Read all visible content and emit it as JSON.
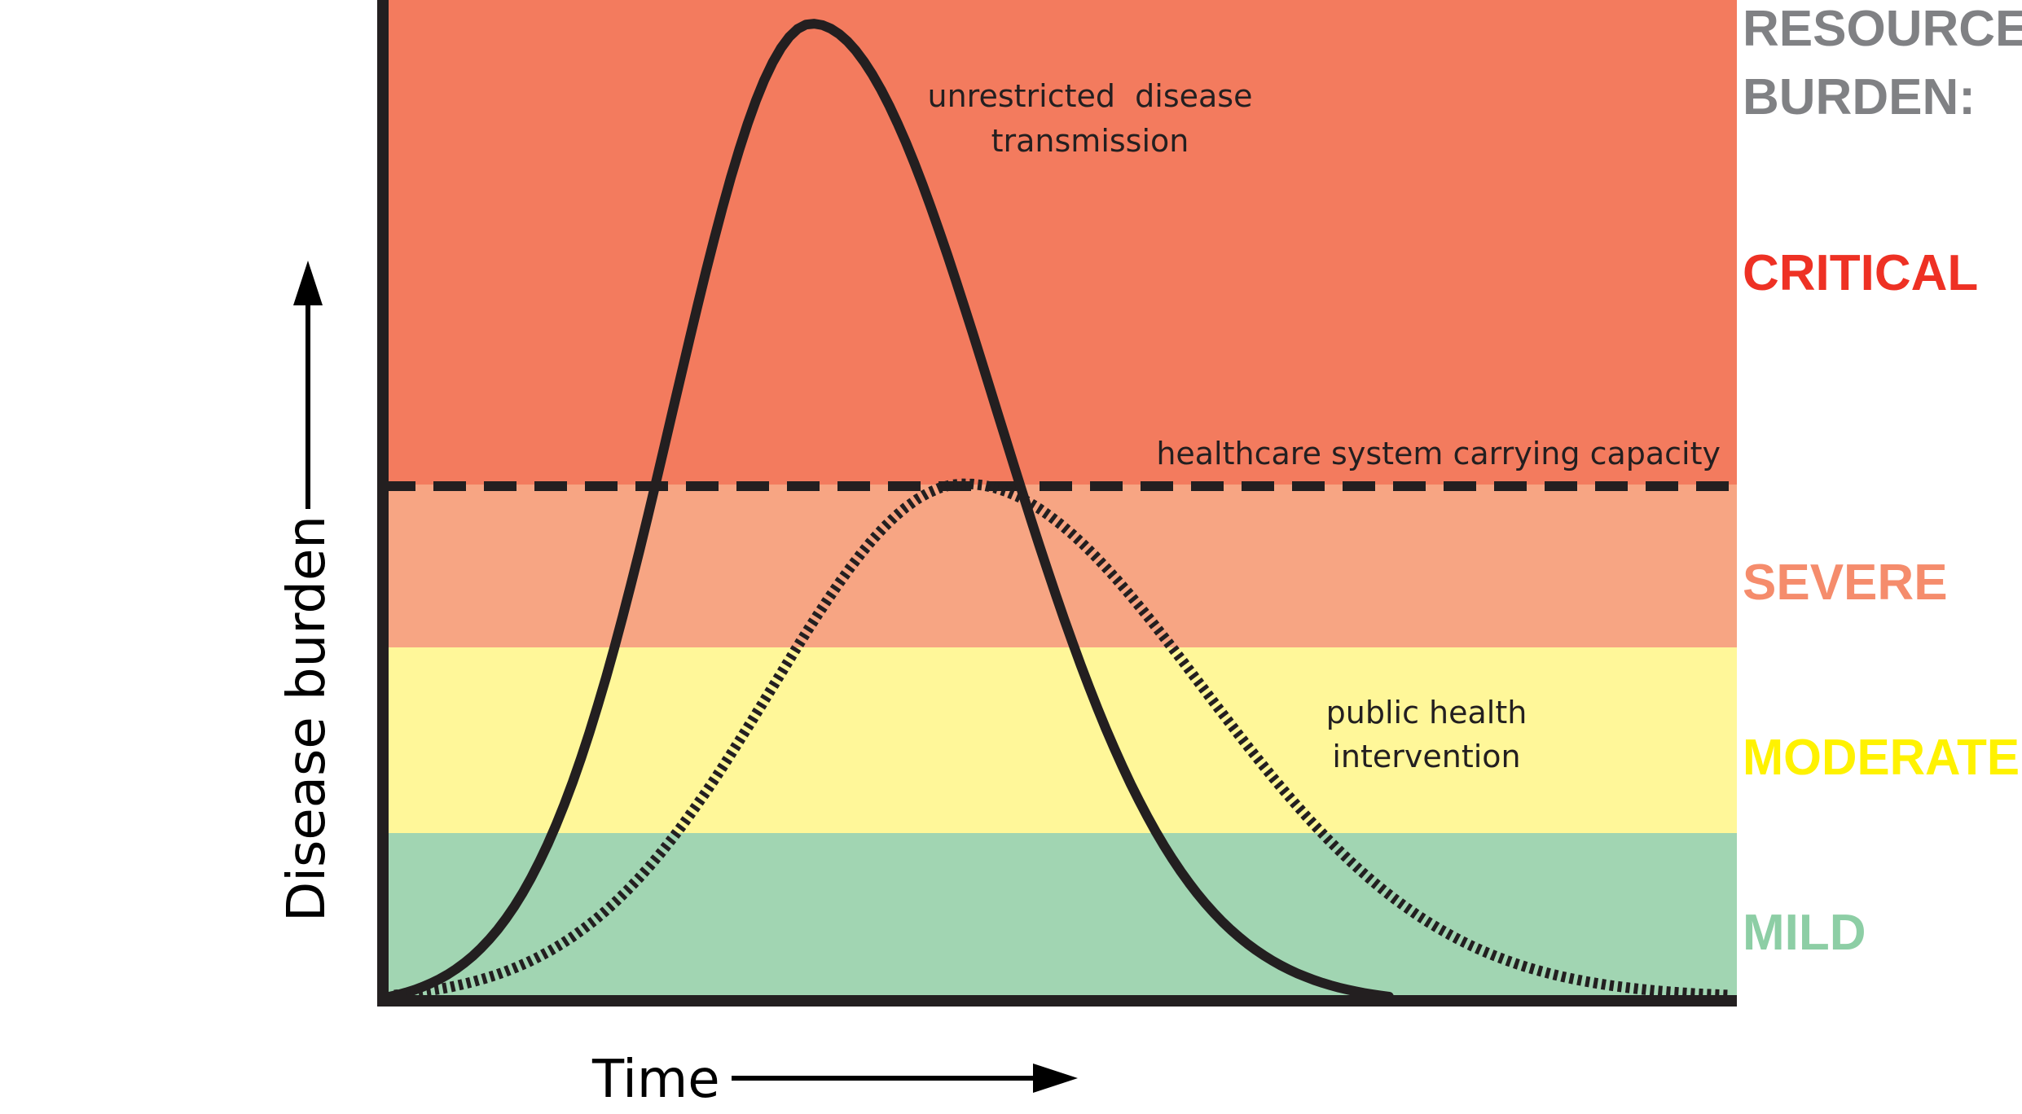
{
  "axes": {
    "y_label": "Disease burden",
    "x_label": "Time"
  },
  "resource_burden": {
    "heading_line1": "RESOURCE",
    "heading_line2": "BURDEN:",
    "heading_color": "#808184"
  },
  "zones": [
    {
      "key": "critical",
      "label": "CRITICAL",
      "fill": "#f37b5e",
      "text_color": "#ee3124"
    },
    {
      "key": "severe",
      "label": "SEVERE",
      "fill": "#f7a583",
      "text_color": "#f58c6c"
    },
    {
      "key": "moderate",
      "label": "MODERATE",
      "fill": "#fff799",
      "text_color": "#fff200"
    },
    {
      "key": "mild",
      "label": "MILD",
      "fill": "#a1d5b2",
      "text_color": "#8dcea5"
    }
  ],
  "annotations": {
    "unrestricted_line1": "unrestricted  disease",
    "unrestricted_line2": "transmission",
    "capacity": "healthcare system carrying capacity",
    "intervention_line1": "public health",
    "intervention_line2": "intervention"
  },
  "curves": {
    "unrestricted": {
      "style": "solid",
      "color": "#231f20"
    },
    "intervention": {
      "style": "dotted",
      "color": "#231f20"
    }
  }
}
